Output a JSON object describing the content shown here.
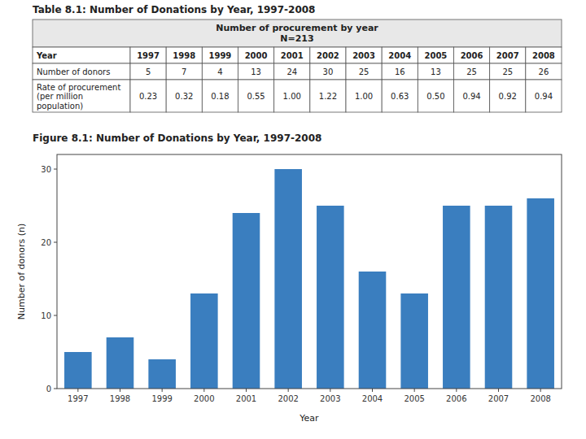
{
  "chart_data": [
    {
      "type": "table",
      "title": "Table 8.1: Number of Donations by Year, 1997-2008",
      "header": [
        "Number of procurement by year",
        "N=213"
      ],
      "color": "#e8e8e8",
      "column_label": "Year",
      "categories": [
        "1997",
        "1998",
        "1999",
        "2000",
        "2001",
        "2002",
        "2003",
        "2004",
        "2005",
        "2006",
        "2007",
        "2008"
      ],
      "series": [
        {
          "name": "Number of donors",
          "values": [
            5,
            7,
            4,
            13,
            24,
            30,
            25,
            16,
            13,
            25,
            25,
            26
          ]
        },
        {
          "name": "Rate of procurement\n(per million\npopulation)",
          "values": [
            0.23,
            0.32,
            0.18,
            0.55,
            1.0,
            1.22,
            1.0,
            0.63,
            0.5,
            0.94,
            0.92,
            0.94
          ],
          "value_labels": [
            "0.23",
            "0.32",
            "0.18",
            "0.55",
            "1.00",
            "1.22",
            "1.00",
            "0.63",
            "0.50",
            "0.94",
            "0.92",
            "0.94"
          ]
        }
      ]
    },
    {
      "type": "bar",
      "title": "Figure 8.1: Number of Donations by Year, 1997-2008",
      "categories": [
        "1997",
        "1998",
        "1999",
        "2000",
        "2001",
        "2002",
        "2003",
        "2004",
        "2005",
        "2006",
        "2007",
        "2008"
      ],
      "values": [
        5,
        7,
        4,
        13,
        24,
        30,
        25,
        16,
        13,
        25,
        25,
        26
      ],
      "color": "#3a7ebf",
      "xlabel": "Year",
      "ylabel": "Number of donors (n)",
      "ylim": [
        0,
        32
      ],
      "yticks": [
        0,
        10,
        20,
        30
      ],
      "grid": false
    }
  ]
}
